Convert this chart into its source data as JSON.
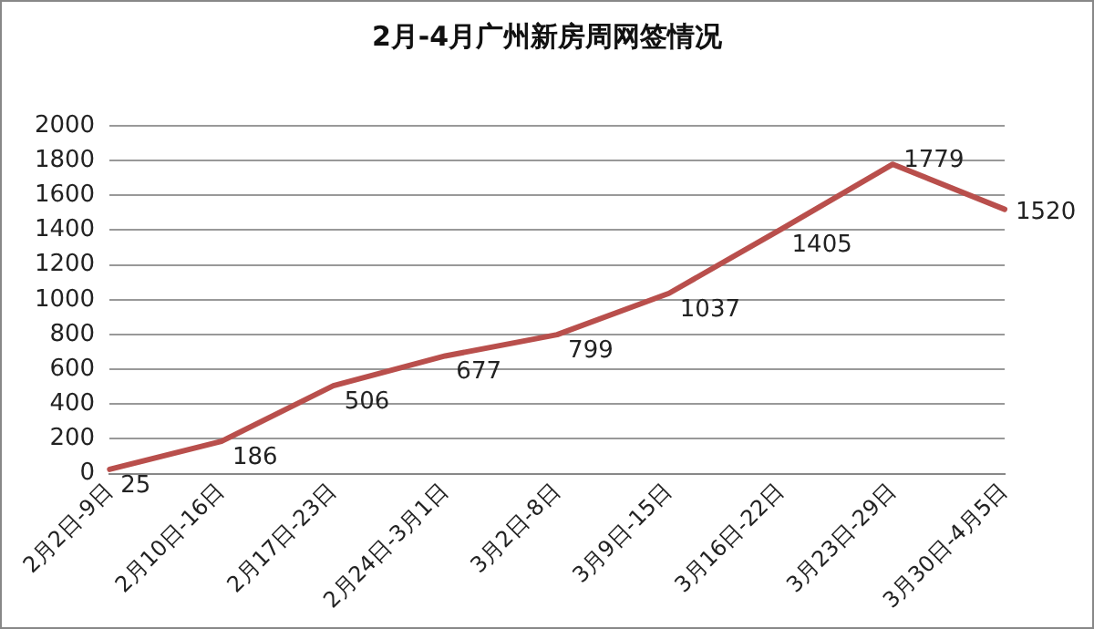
{
  "chart_data": {
    "type": "line",
    "title": "2月-4月广州新房周网签情况",
    "categories": [
      "2月2日-9日",
      "2月10日-16日",
      "2月17日-23日",
      "2月24日-3月1日",
      "3月2日-8日",
      "3月9日-15日",
      "3月16日-22日",
      "3月23日-29日",
      "3月30日-4月5日"
    ],
    "series": [
      {
        "color": "#b94f4c",
        "values": [
          25,
          186,
          506,
          677,
          799,
          1037,
          1405,
          1779,
          1520
        ]
      }
    ],
    "ylim": [
      0,
      2000
    ],
    "yticks": [
      0,
      200,
      400,
      600,
      800,
      1000,
      1200,
      1400,
      1600,
      1800,
      2000
    ],
    "grid": "y",
    "legend": false,
    "marker": "none",
    "line_style": "solid",
    "data_labels": true
  }
}
